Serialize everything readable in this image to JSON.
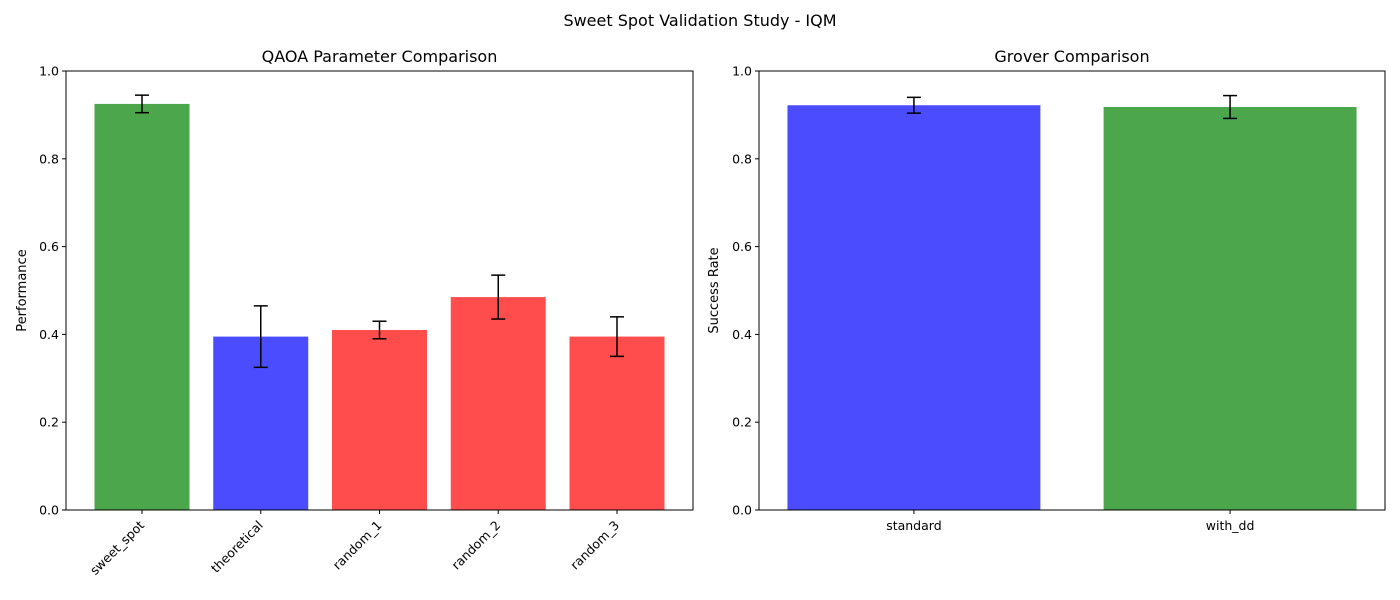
{
  "figure": {
    "suptitle": "Sweet Spot Validation Study - IQM"
  },
  "chart_data": [
    {
      "type": "bar",
      "title": "QAOA Parameter Comparison",
      "xlabel": "",
      "ylabel": "Performance",
      "ylim": [
        0,
        1.0
      ],
      "yticks": [
        "0.0",
        "0.2",
        "0.4",
        "0.6",
        "0.8",
        "1.0"
      ],
      "categories": [
        "sweet_spot",
        "theoretical",
        "random_1",
        "random_2",
        "random_3"
      ],
      "values": [
        0.925,
        0.395,
        0.41,
        0.485,
        0.395
      ],
      "errors": [
        0.02,
        0.07,
        0.02,
        0.05,
        0.045
      ],
      "colors": [
        "#4ca64c",
        "#4c4cff",
        "#ff4c4c",
        "#ff4c4c",
        "#ff4c4c"
      ],
      "xtick_rotation": 45,
      "grid": false
    },
    {
      "type": "bar",
      "title": "Grover Comparison",
      "xlabel": "",
      "ylabel": "Success Rate",
      "ylim": [
        0,
        1.0
      ],
      "yticks": [
        "0.0",
        "0.2",
        "0.4",
        "0.6",
        "0.8",
        "1.0"
      ],
      "categories": [
        "standard",
        "with_dd"
      ],
      "values": [
        0.922,
        0.918
      ],
      "errors": [
        0.018,
        0.026
      ],
      "colors": [
        "#4c4cff",
        "#4ca64c"
      ],
      "xtick_rotation": 0,
      "grid": false
    }
  ]
}
